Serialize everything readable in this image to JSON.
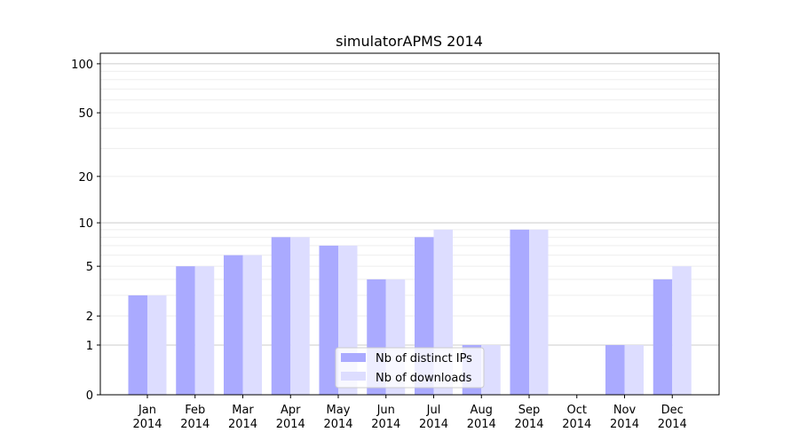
{
  "chart_data": {
    "type": "bar",
    "title": "simulatorAPMS 2014",
    "xlabel": "",
    "ylabel": "",
    "yscale": "log10(1+y)",
    "ylim": [
      0,
      116
    ],
    "yticks": [
      0,
      1,
      2,
      5,
      10,
      20,
      50,
      100
    ],
    "grid": true,
    "legend_position": "bottom-center",
    "categories": [
      "Jan\n2014",
      "Feb\n2014",
      "Mar\n2014",
      "Apr\n2014",
      "May\n2014",
      "Jun\n2014",
      "Jul\n2014",
      "Aug\n2014",
      "Sep\n2014",
      "Oct\n2014",
      "Nov\n2014",
      "Dec\n2014"
    ],
    "series": [
      {
        "name": "Nb of distinct IPs",
        "color": "#aaaaff",
        "values": [
          3,
          5,
          6,
          8,
          7,
          4,
          8,
          1,
          9,
          0,
          1,
          4
        ]
      },
      {
        "name": "Nb of downloads",
        "color": "#ddddff",
        "values": [
          3,
          5,
          6,
          8,
          7,
          4,
          9,
          1,
          9,
          0,
          1,
          5
        ]
      }
    ]
  }
}
